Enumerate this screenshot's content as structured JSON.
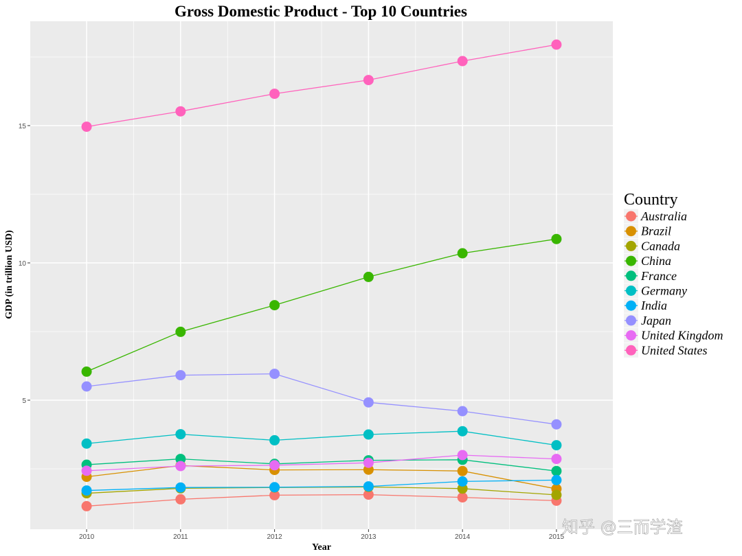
{
  "chart_data": {
    "type": "line",
    "title": "Gross Domestic Product - Top 10 Countries",
    "xlabel": "Year",
    "ylabel": "GDP (in trillion USD)",
    "x": [
      2010,
      2011,
      2012,
      2013,
      2014,
      2015
    ],
    "x_tick_labels": [
      "2010",
      "2011",
      "2012",
      "2013",
      "2014",
      "2015"
    ],
    "y_ticks": [
      5,
      10,
      15
    ],
    "y_tick_labels": [
      "5",
      "10",
      "15"
    ],
    "xlim": [
      2009.4,
      2015.6
    ],
    "ylim": [
      0.3,
      18.8
    ],
    "grid": true,
    "legend_title": "Country",
    "legend_position": "right",
    "series": [
      {
        "name": "Australia",
        "color": "#F8766D",
        "values": [
          1.14,
          1.39,
          1.54,
          1.56,
          1.46,
          1.34
        ]
      },
      {
        "name": "Brazil",
        "color": "#D89000",
        "values": [
          2.21,
          2.62,
          2.46,
          2.47,
          2.42,
          1.77
        ]
      },
      {
        "name": "Canada",
        "color": "#A3A500",
        "values": [
          1.61,
          1.79,
          1.82,
          1.84,
          1.78,
          1.55
        ]
      },
      {
        "name": "China",
        "color": "#39B600",
        "values": [
          6.04,
          7.49,
          8.46,
          9.49,
          10.35,
          10.87
        ]
      },
      {
        "name": "France",
        "color": "#00BF7D",
        "values": [
          2.65,
          2.86,
          2.68,
          2.81,
          2.83,
          2.42
        ]
      },
      {
        "name": "Germany",
        "color": "#00BFC4",
        "values": [
          3.42,
          3.76,
          3.54,
          3.75,
          3.87,
          3.36
        ]
      },
      {
        "name": "India",
        "color": "#00B0F6",
        "values": [
          1.71,
          1.82,
          1.83,
          1.86,
          2.04,
          2.09
        ]
      },
      {
        "name": "Japan",
        "color": "#9590FF",
        "values": [
          5.5,
          5.91,
          5.96,
          4.92,
          4.6,
          4.12
        ]
      },
      {
        "name": "United Kingdom",
        "color": "#E76BF3",
        "values": [
          2.43,
          2.6,
          2.63,
          2.72,
          3.0,
          2.86
        ]
      },
      {
        "name": "United States",
        "color": "#FF62BC",
        "values": [
          14.96,
          15.52,
          16.16,
          16.66,
          17.35,
          17.95
        ]
      }
    ]
  },
  "watermark": "知乎 @三而学渣",
  "colors": {
    "panel_bg": "#EBEBEB",
    "grid": "#FFFFFF"
  }
}
